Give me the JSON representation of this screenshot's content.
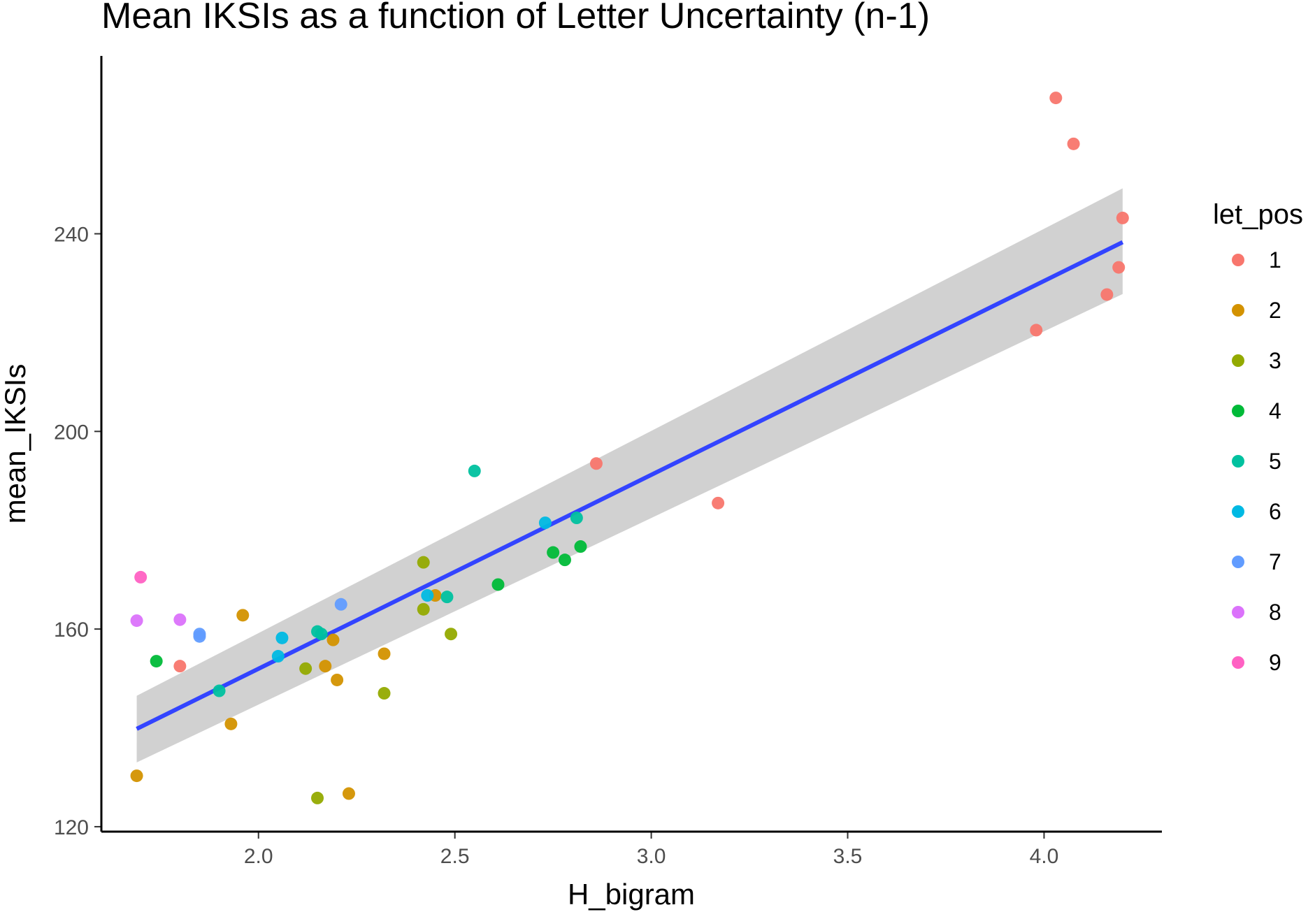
{
  "chart_data": {
    "type": "scatter",
    "title": "Mean IKSIs as a function of Letter Uncertainty (n-1)",
    "xlabel": "H_bigram",
    "ylabel": "mean_IKSIs",
    "xlim": [
      1.6,
      4.3
    ],
    "ylim": [
      119,
      276
    ],
    "x_ticks": [
      2.0,
      2.5,
      3.0,
      3.5,
      4.0
    ],
    "x_tick_labels": [
      "2.0",
      "2.5",
      "3.0",
      "3.5",
      "4.0"
    ],
    "y_ticks": [
      120,
      160,
      200,
      240
    ],
    "y_tick_labels": [
      "120",
      "160",
      "200",
      "240"
    ],
    "grid": false,
    "legend": {
      "title": "let_pos",
      "placement": "right",
      "entries": [
        {
          "label": "1",
          "color": "#F8766D"
        },
        {
          "label": "2",
          "color": "#D39200"
        },
        {
          "label": "3",
          "color": "#93AA00"
        },
        {
          "label": "4",
          "color": "#00BA38"
        },
        {
          "label": "5",
          "color": "#00C19F"
        },
        {
          "label": "6",
          "color": "#00B9E3"
        },
        {
          "label": "7",
          "color": "#619CFF"
        },
        {
          "label": "8",
          "color": "#DB72FB"
        },
        {
          "label": "9",
          "color": "#FF61C3"
        }
      ]
    },
    "series": [
      {
        "name": "1",
        "color": "#F8766D",
        "points": [
          [
            1.8,
            152.5
          ],
          [
            2.86,
            193.5
          ],
          [
            3.17,
            185.5
          ],
          [
            3.98,
            220.5
          ],
          [
            4.03,
            267.5
          ],
          [
            4.075,
            258.2
          ],
          [
            4.16,
            227.7
          ],
          [
            4.19,
            233.2
          ],
          [
            4.2,
            243.2
          ]
        ]
      },
      {
        "name": "2",
        "color": "#D39200",
        "points": [
          [
            1.69,
            130.3
          ],
          [
            1.93,
            140.8
          ],
          [
            1.96,
            162.8
          ],
          [
            2.17,
            152.5
          ],
          [
            2.19,
            157.8
          ],
          [
            2.2,
            149.7
          ],
          [
            2.23,
            126.7
          ],
          [
            2.32,
            155.0
          ],
          [
            2.45,
            166.8
          ]
        ]
      },
      {
        "name": "3",
        "color": "#93AA00",
        "points": [
          [
            2.12,
            152.0
          ],
          [
            2.15,
            125.8
          ],
          [
            2.32,
            147.0
          ],
          [
            2.42,
            173.5
          ],
          [
            2.42,
            164.0
          ],
          [
            2.49,
            159.0
          ]
        ]
      },
      {
        "name": "4",
        "color": "#00BA38",
        "points": [
          [
            1.74,
            153.5
          ],
          [
            2.61,
            169.0
          ],
          [
            2.75,
            175.5
          ],
          [
            2.78,
            174.0
          ],
          [
            2.82,
            176.7
          ]
        ]
      },
      {
        "name": "5",
        "color": "#00C19F",
        "points": [
          [
            1.9,
            147.5
          ],
          [
            2.15,
            159.5
          ],
          [
            2.16,
            159.0
          ],
          [
            2.48,
            166.5
          ],
          [
            2.55,
            192.0
          ],
          [
            2.81,
            182.5
          ]
        ]
      },
      {
        "name": "6",
        "color": "#00B9E3",
        "points": [
          [
            2.05,
            154.5
          ],
          [
            2.06,
            158.2
          ],
          [
            2.43,
            166.8
          ],
          [
            2.73,
            181.5
          ]
        ]
      },
      {
        "name": "7",
        "color": "#619CFF",
        "points": [
          [
            1.85,
            159.0
          ],
          [
            1.85,
            158.5
          ],
          [
            2.21,
            165.0
          ]
        ]
      },
      {
        "name": "8",
        "color": "#DB72FB",
        "points": [
          [
            1.69,
            161.7
          ],
          [
            1.8,
            161.9
          ]
        ]
      },
      {
        "name": "9",
        "color": "#FF61C3",
        "points": [
          [
            1.7,
            170.5
          ]
        ]
      }
    ],
    "regression": {
      "color": "#3344FF",
      "band_color": "#CCCCCC",
      "x_start": 1.69,
      "x_end": 4.2,
      "y_start": 139.8,
      "y_end": 238.3,
      "band_low_start": 133.0,
      "band_high_start": 146.5,
      "band_low_end": 227.8,
      "band_high_end": 249.2
    }
  }
}
